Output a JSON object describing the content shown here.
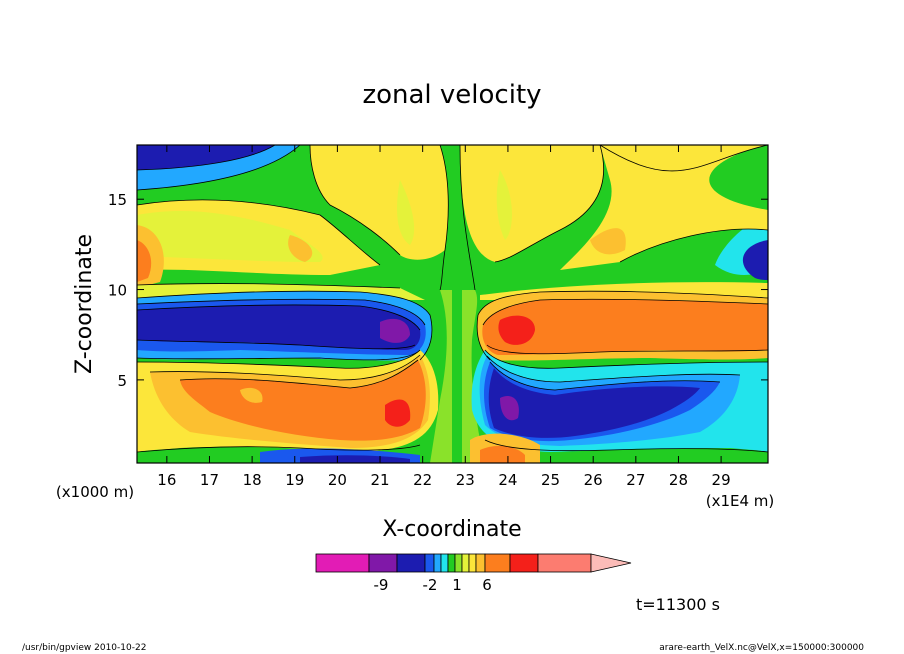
{
  "chart_data": {
    "type": "heatmap",
    "title": "zonal velocity",
    "xlabel": "X-coordinate",
    "ylabel": "Z-coordinate",
    "x_unit_left": "(x1000 m)",
    "x_unit_right": "(x1E4 m)",
    "x_ticks": [
      16,
      17,
      18,
      19,
      20,
      21,
      22,
      23,
      24,
      25,
      26,
      27,
      28,
      29
    ],
    "y_ticks": [
      5,
      10,
      15
    ],
    "xlim": [
      15.3,
      30.1
    ],
    "ylim": [
      0.4,
      18
    ],
    "colorbar": {
      "levels": [
        -10,
        -9,
        -8,
        -3,
        -2,
        -1,
        0,
        1,
        2,
        3,
        4,
        6,
        8,
        12,
        14
      ],
      "labeled_values": [
        "-9",
        "-2",
        "1",
        "6"
      ],
      "colors": [
        "#e21cb5",
        "#8018a8",
        "#1c1cb0",
        "#1a58ee",
        "#22a8ff",
        "#22e4ec",
        "#22cc22",
        "#8ae22a",
        "#e4f23a",
        "#fce63a",
        "#fcc030",
        "#fc7e1e",
        "#f4201a",
        "#fc7c70",
        "#fcbcb8"
      ]
    },
    "grid": false,
    "legend": "bottom"
  },
  "time_label": "t=11300 s",
  "footer": {
    "left": "/usr/bin/gpview  2010-10-22",
    "right": "arare-earth_VelX.nc@VelX,x=150000:300000"
  }
}
